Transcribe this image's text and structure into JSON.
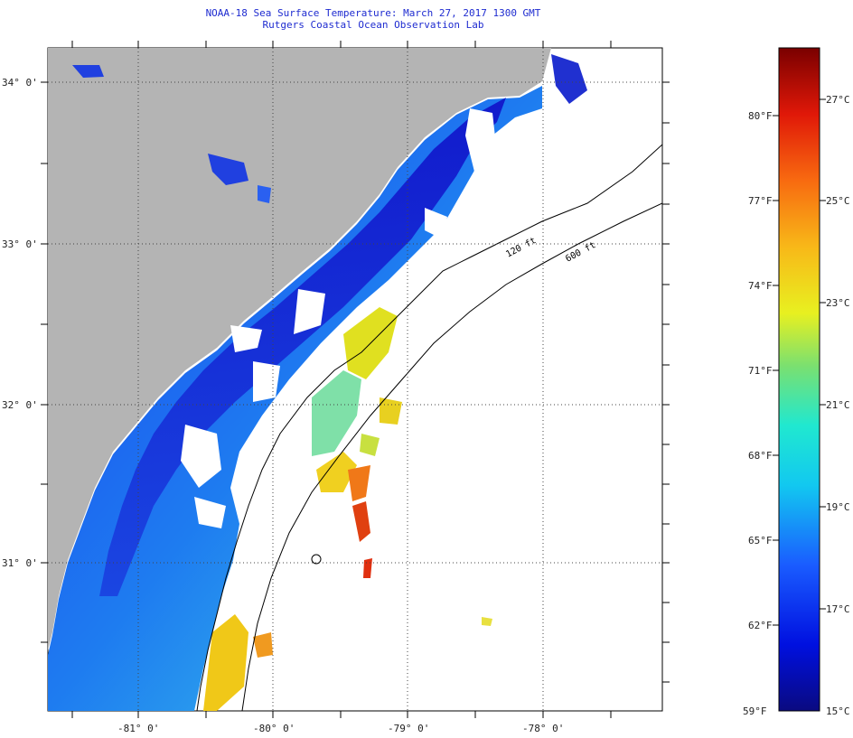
{
  "header": {
    "title": "NOAA-18 Sea Surface Temperature:  March 27, 2017 1300 GMT",
    "subtitle": "Rutgers Coastal Ocean Observation Lab"
  },
  "map": {
    "lat_labels": [
      "34° 0'",
      "33° 0'",
      "32° 0'",
      "31° 0'"
    ],
    "lon_labels": [
      "-81° 0'",
      "-80° 0'",
      "-79° 0'",
      "-78° 0'"
    ],
    "contour_labels": [
      "120 ft",
      "600 ft"
    ],
    "colors": {
      "land": "#b4b4b4",
      "water_nodata": "#ffffff"
    }
  },
  "colorbar": {
    "f_labels": [
      "80°F",
      "77°F",
      "74°F",
      "71°F",
      "68°F",
      "65°F",
      "62°F",
      "59°F"
    ],
    "c_labels": [
      "27°C",
      "25°C",
      "23°C",
      "21°C",
      "19°C",
      "17°C",
      "15°C"
    ],
    "f_values": [
      80,
      77,
      74,
      71,
      68,
      65,
      62,
      59
    ],
    "c_values": [
      27,
      25,
      23,
      21,
      19,
      17,
      15
    ],
    "range_c": [
      15,
      28
    ]
  }
}
